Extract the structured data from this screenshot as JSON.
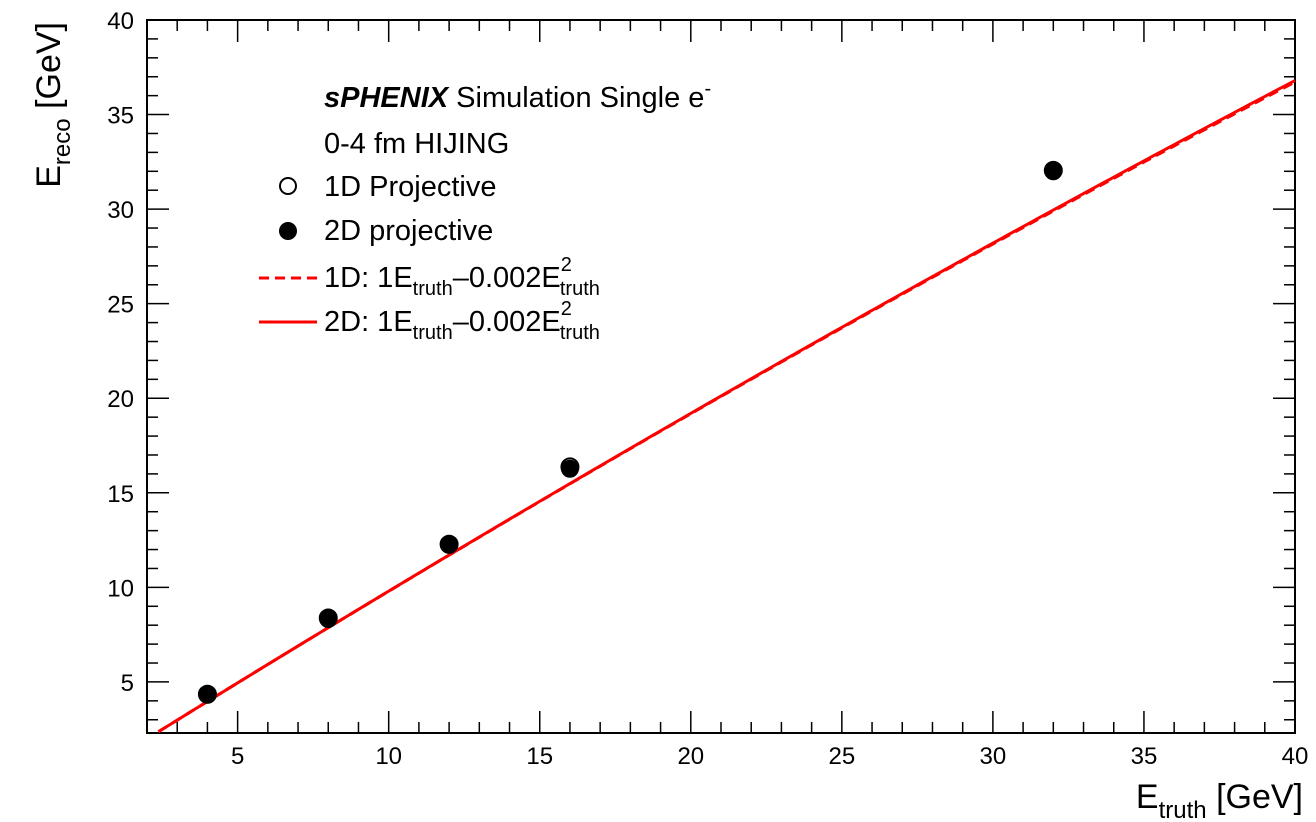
{
  "chart_data": {
    "type": "scatter",
    "title": "",
    "xlabel": {
      "main": "E",
      "sub": "truth",
      "unit": " [GeV]"
    },
    "ylabel": {
      "main": "E",
      "sub": "reco",
      "unit": " [GeV]"
    },
    "xlim": [
      2,
      40
    ],
    "ylim": [
      2.3,
      40
    ],
    "xticks": [
      5,
      10,
      15,
      20,
      25,
      30,
      35,
      40
    ],
    "yticks": [
      5,
      10,
      15,
      20,
      25,
      30,
      35,
      40
    ],
    "xminor_step": 1,
    "yminor_step": 1,
    "grid": false,
    "legend_position": "top-left",
    "annotations": {
      "experiment": "sPHENIX",
      "line1_rest": " Simulation Single e",
      "line1_sup": "-",
      "line2": "0-4 fm HIJING"
    },
    "series": [
      {
        "name": "1D Projective",
        "marker": "open-circle",
        "color": "#000000",
        "x": [
          4,
          8,
          12,
          16,
          32
        ],
        "y": [
          4.35,
          8.38,
          12.28,
          16.37,
          32.05
        ]
      },
      {
        "name": "2D projective",
        "marker": "filled-circle",
        "color": "#000000",
        "x": [
          4,
          8,
          12,
          16,
          32
        ],
        "y": [
          4.33,
          8.33,
          12.25,
          16.27,
          32.0
        ]
      }
    ],
    "fits": [
      {
        "name_prefix": "1D: 1E",
        "name_sub1": "truth",
        "name_mid": "–0.002E",
        "name_sup": "2",
        "name_sub2": "truth",
        "style": "dashed",
        "color": "#ff0000",
        "a": 1.0,
        "b": -0.002,
        "x_range": [
          2,
          40
        ]
      },
      {
        "name_prefix": "2D: 1E",
        "name_sub1": "truth",
        "name_mid": "–0.002E",
        "name_sup": "2",
        "name_sub2": "truth",
        "style": "solid",
        "color": "#ff0000",
        "a": 1.0,
        "b": -0.002,
        "x_range": [
          2,
          40
        ]
      }
    ]
  }
}
